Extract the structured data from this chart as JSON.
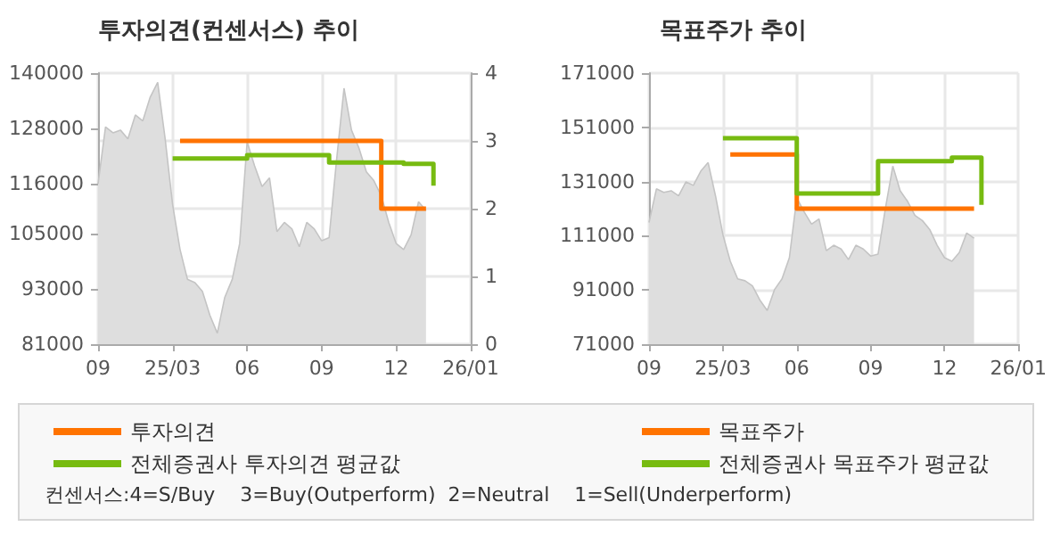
{
  "chart_data": [
    {
      "type": "step",
      "title": "투자의견(컨센서스) 추이",
      "categories": [
        "09",
        null,
        null,
        null,
        null,
        null,
        null,
        null,
        null,
        null,
        "25/03",
        null,
        null,
        null,
        null,
        null,
        null,
        null,
        null,
        null,
        "06",
        null,
        null,
        null,
        null,
        null,
        null,
        null,
        null,
        null,
        "09",
        null,
        null,
        null,
        null,
        null,
        null,
        null,
        null,
        null,
        "12",
        null,
        null,
        null,
        null,
        null,
        null,
        null,
        null,
        null,
        "26/01"
      ],
      "series": [
        {
          "type": "area",
          "color": "#dedede",
          "values": [
            115900,
            128300,
            127000,
            127600,
            125700,
            130900,
            129600,
            134800,
            138000,
            125700,
            111400,
            101600,
            95100,
            94400,
            92500,
            87300,
            83400,
            91200,
            95100,
            102900,
            125000,
            119800,
            115300,
            117200,
            105500,
            107500,
            106100,
            102200,
            107500,
            106100,
            103500,
            104200,
            121100,
            136700,
            127600,
            123700,
            118500,
            116600,
            113300,
            107500,
            102900,
            101600,
            104800,
            112000,
            110100,
            null,
            null,
            null,
            null,
            null,
            null
          ]
        },
        {
          "name": "투자의견",
          "color": "#ff7300",
          "axis": "y2",
          "values": [
            null,
            null,
            null,
            null,
            null,
            null,
            null,
            null,
            null,
            null,
            null,
            3,
            3,
            3,
            3,
            3,
            3,
            3,
            3,
            3,
            3,
            3,
            3,
            3,
            3,
            3,
            3,
            3,
            3,
            3,
            3,
            3,
            3,
            3,
            3,
            3,
            3,
            3,
            2,
            2,
            2,
            2,
            2,
            2,
            2,
            null,
            null,
            null,
            null,
            null,
            null
          ]
        },
        {
          "name": "전체증권사 투자의견 평균값",
          "color": "#77bb11",
          "axis": "y2",
          "values": [
            null,
            null,
            null,
            null,
            null,
            null,
            null,
            null,
            null,
            null,
            2.74,
            2.74,
            2.74,
            2.74,
            2.74,
            2.74,
            2.74,
            2.74,
            2.74,
            2.74,
            2.79,
            2.79,
            2.79,
            2.79,
            2.79,
            2.79,
            2.79,
            2.79,
            2.79,
            2.79,
            2.79,
            2.68,
            2.68,
            2.68,
            2.68,
            2.68,
            2.68,
            2.68,
            2.68,
            2.68,
            2.68,
            2.66,
            2.66,
            2.66,
            2.66,
            2.34,
            null,
            null,
            null,
            null,
            null
          ]
        }
      ],
      "ylim": [
        81000,
        140000
      ],
      "yticks": [
        81000,
        93000,
        105000,
        116000,
        128000,
        140000
      ],
      "y2lim": [
        0,
        4
      ],
      "y2ticks": [
        0,
        1,
        2,
        3,
        4
      ],
      "grid": true,
      "legend": "bottom",
      "annotations": [
        "컨센서스:4=S/Buy    3=Buy(Outperform)  2=Neutral    1=Sell(Underperform)"
      ]
    },
    {
      "type": "step",
      "title": "목표주가 추이",
      "categories": [
        "09",
        null,
        null,
        null,
        null,
        null,
        null,
        null,
        null,
        null,
        "25/03",
        null,
        null,
        null,
        null,
        null,
        null,
        null,
        null,
        null,
        "06",
        null,
        null,
        null,
        null,
        null,
        null,
        null,
        null,
        null,
        "09",
        null,
        null,
        null,
        null,
        null,
        null,
        null,
        null,
        null,
        "12",
        null,
        null,
        null,
        null,
        null,
        null,
        null,
        null,
        null,
        "26/01"
      ],
      "series": [
        {
          "type": "area",
          "color": "#dedede",
          "values": [
            115900,
            128300,
            127000,
            127600,
            125700,
            130900,
            129600,
            134800,
            138000,
            125700,
            111400,
            101600,
            95100,
            94400,
            92500,
            87300,
            83400,
            91200,
            95100,
            102900,
            125000,
            119800,
            115300,
            117200,
            105500,
            107500,
            106100,
            102200,
            107500,
            106100,
            103500,
            104200,
            121100,
            136700,
            127600,
            123700,
            118500,
            116600,
            113300,
            107500,
            102900,
            101600,
            104800,
            112000,
            110100,
            null,
            null,
            null,
            null,
            null,
            null
          ]
        },
        {
          "name": "목표주가",
          "color": "#ff7300",
          "values": [
            null,
            null,
            null,
            null,
            null,
            null,
            null,
            null,
            null,
            null,
            null,
            141000,
            141000,
            141000,
            141000,
            141000,
            141000,
            141000,
            141000,
            141000,
            121000,
            121000,
            121000,
            121000,
            121000,
            121000,
            121000,
            121000,
            121000,
            121000,
            121000,
            121000,
            121000,
            121000,
            121000,
            121000,
            121000,
            121000,
            121000,
            121000,
            121000,
            121000,
            121000,
            121000,
            121000,
            null,
            null,
            null,
            null,
            null,
            null
          ]
        },
        {
          "name": "전체증권사 목표주가 평균값",
          "color": "#77bb11",
          "values": [
            null,
            null,
            null,
            null,
            null,
            null,
            null,
            null,
            null,
            null,
            147000,
            147000,
            147000,
            147000,
            147000,
            147000,
            147000,
            147000,
            147000,
            147000,
            126600,
            126600,
            126600,
            126600,
            126600,
            126600,
            126600,
            126600,
            126600,
            126600,
            126600,
            138500,
            138500,
            138500,
            138500,
            138500,
            138500,
            138500,
            138500,
            138500,
            138500,
            139800,
            139800,
            139800,
            139800,
            122400,
            null,
            null,
            null,
            null,
            null
          ]
        }
      ],
      "ylim": [
        71000,
        171000
      ],
      "yticks": [
        71000,
        91000,
        111000,
        131000,
        151000,
        171000
      ],
      "grid": true,
      "legend": "bottom"
    }
  ]
}
